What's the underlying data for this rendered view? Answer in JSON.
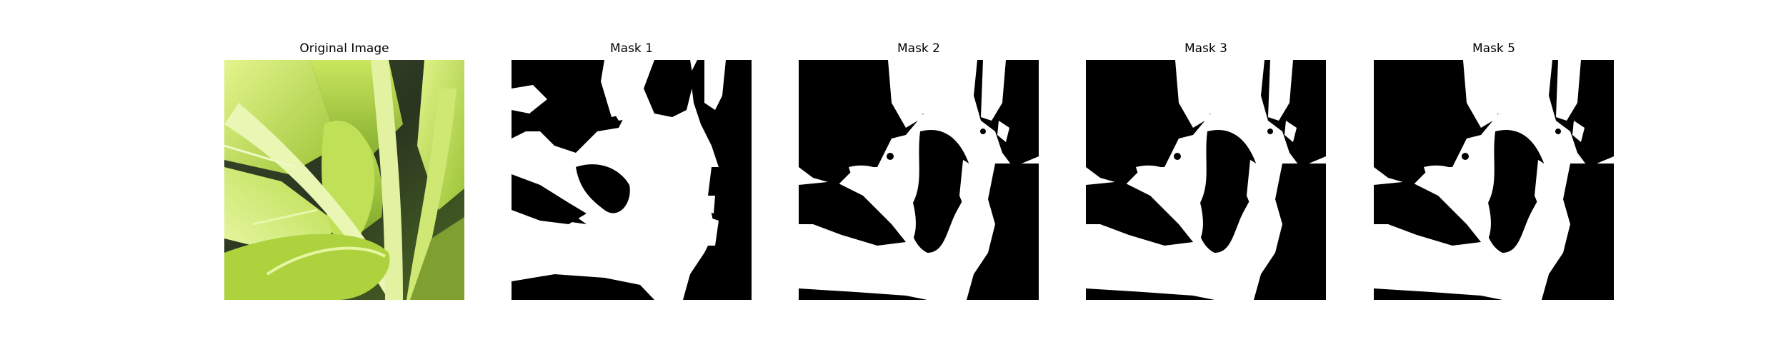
{
  "panels": [
    {
      "title": "Original Image",
      "kind": "photo"
    },
    {
      "title": "Mask 1",
      "kind": "mask"
    },
    {
      "title": "Mask 2",
      "kind": "mask"
    },
    {
      "title": "Mask 3",
      "kind": "mask"
    },
    {
      "title": "Mask 5",
      "kind": "mask"
    }
  ],
  "colors": {
    "background": "#ffffff",
    "mask_foreground": "#ffffff",
    "mask_background": "#000000",
    "leaf_light": "#d8ef7a",
    "leaf_mid": "#a9cf3c",
    "leaf_dark": "#5f8a1c",
    "shadow": "#2a3520"
  }
}
